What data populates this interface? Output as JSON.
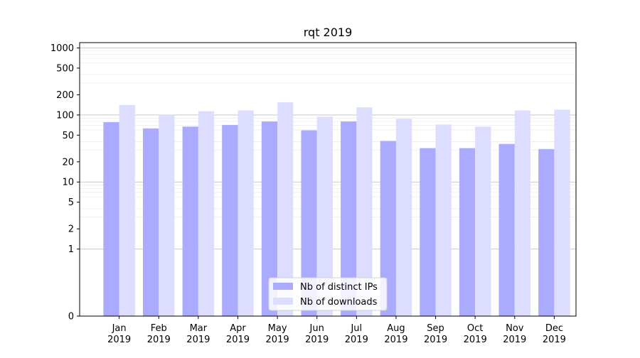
{
  "chart_data": {
    "type": "bar",
    "title": "rqt 2019",
    "xlabel": "",
    "ylabel": "",
    "yscale": "symlog",
    "ylim": [
      0,
      1200
    ],
    "categories": [
      "Jan\n2019",
      "Feb\n2019",
      "Mar\n2019",
      "Apr\n2019",
      "May\n2019",
      "Jun\n2019",
      "Jul\n2019",
      "Aug\n2019",
      "Sep\n2019",
      "Oct\n2019",
      "Nov\n2019",
      "Dec\n2019"
    ],
    "y_ticks": [
      0,
      1,
      2,
      5,
      10,
      20,
      50,
      100,
      200,
      500,
      1000
    ],
    "y_tick_labels": [
      "0",
      "1",
      "2",
      "5",
      "10",
      "20",
      "50",
      "100",
      "200",
      "500",
      "1000"
    ],
    "series": [
      {
        "name": "Nb of distinct IPs",
        "color": "#aaaaff",
        "values": [
          78,
          63,
          67,
          71,
          80,
          59,
          80,
          41,
          32,
          32,
          37,
          31
        ]
      },
      {
        "name": "Nb of downloads",
        "color": "#ddddff",
        "values": [
          141,
          102,
          114,
          117,
          155,
          94,
          130,
          88,
          72,
          67,
          117,
          120
        ]
      }
    ],
    "legend": {
      "position": "bottom-center"
    },
    "grid": {
      "major": true,
      "minor": true
    }
  }
}
